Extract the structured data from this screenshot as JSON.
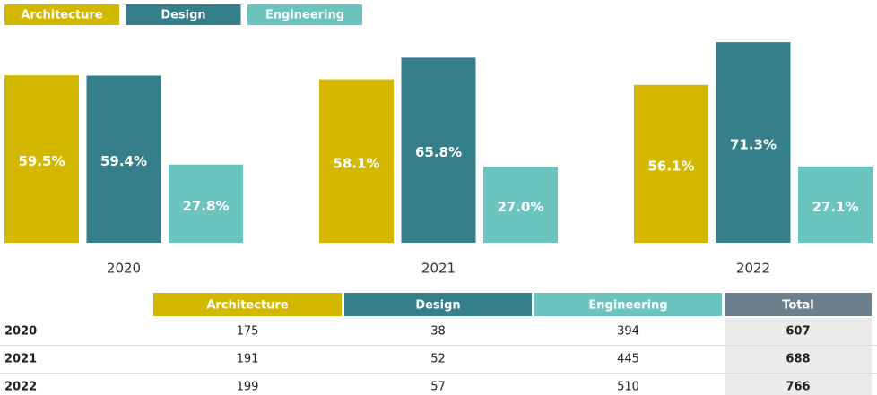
{
  "chart_data": {
    "type": "bar",
    "categories": [
      "2020",
      "2021",
      "2022"
    ],
    "series": [
      {
        "name": "Architecture",
        "color": "#d4b800",
        "values": [
          59.5,
          58.1,
          56.1
        ],
        "value_labels": [
          "59.5%",
          "58.1%",
          "56.1%"
        ]
      },
      {
        "name": "Design",
        "color": "#357f8a",
        "values": [
          59.4,
          65.8,
          71.3
        ],
        "value_labels": [
          "59.4%",
          "65.8%",
          "71.3%"
        ]
      },
      {
        "name": "Engineering",
        "color": "#6cc4bf",
        "values": [
          27.8,
          27.0,
          27.1
        ],
        "value_labels": [
          "27.8%",
          "27.0%",
          "27.1%"
        ]
      }
    ]
  },
  "table": {
    "columns": [
      "Architecture",
      "Design",
      "Engineering",
      "Total"
    ],
    "rows": [
      {
        "label": "2020",
        "cells": [
          175,
          38,
          394,
          607
        ]
      },
      {
        "label": "2021",
        "cells": [
          191,
          52,
          445,
          688
        ]
      },
      {
        "label": "2022",
        "cells": [
          199,
          57,
          510,
          766
        ]
      }
    ]
  }
}
